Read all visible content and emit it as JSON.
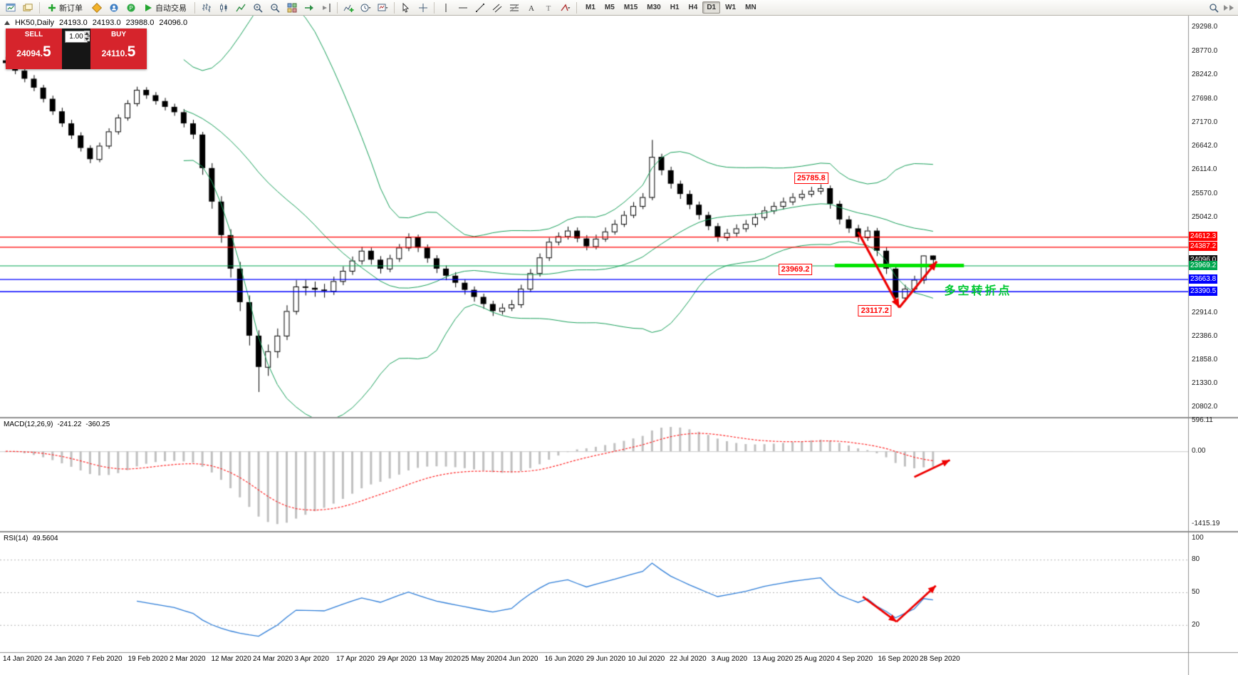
{
  "toolbar": {
    "new_order_label": "新订单",
    "autotrading_label": "自动交易",
    "timeframes": [
      "M1",
      "M5",
      "M15",
      "M30",
      "H1",
      "H4",
      "D1",
      "W1",
      "MN"
    ],
    "active_timeframe": "D1"
  },
  "quote_panel": {
    "sell_label": "SELL",
    "buy_label": "BUY",
    "volume": "1.00",
    "sell_price_main": "24094.",
    "sell_price_big": "5",
    "buy_price_main": "24110.",
    "buy_price_big": "5"
  },
  "chart_header": {
    "symbol": "HK50,Daily",
    "open": "24193.0",
    "high": "24193.0",
    "low": "23988.0",
    "close": "24096.0"
  },
  "chart_data": {
    "type": "candlestick",
    "symbol": "HK50",
    "period": "Daily",
    "price_range": [
      20580,
      29560
    ],
    "price_axis_ticks": [
      "29298.0",
      "28770.0",
      "28242.0",
      "27698.0",
      "27170.0",
      "26642.0",
      "26114.0",
      "25570.0",
      "25042.0",
      "22914.0",
      "22386.0",
      "21858.0",
      "21330.0",
      "20802.0"
    ],
    "x_labels": [
      "14 Jan 2020",
      "24 Jan 2020",
      "7 Feb 2020",
      "19 Feb 2020",
      "2 Mar 2020",
      "12 Mar 2020",
      "24 Mar 2020",
      "3 Apr 2020",
      "17 Apr 2020",
      "29 Apr 2020",
      "13 May 2020",
      "25 May 2020",
      "4 Jun 2020",
      "16 Jun 2020",
      "29 Jun 2020",
      "10 Jul 2020",
      "22 Jul 2020",
      "3 Aug 2020",
      "13 Aug 2020",
      "25 Aug 2020",
      "4 Sep 2020",
      "16 Sep 2020",
      "28 Sep 2020"
    ],
    "ohlc": [
      [
        28560,
        28640,
        28420,
        28500
      ],
      [
        28500,
        28570,
        28250,
        28330
      ],
      [
        28330,
        28400,
        28070,
        28150
      ],
      [
        28150,
        28230,
        27870,
        27950
      ],
      [
        27950,
        28010,
        27620,
        27700
      ],
      [
        27700,
        27770,
        27340,
        27420
      ],
      [
        27420,
        27500,
        27070,
        27150
      ],
      [
        27150,
        27230,
        26800,
        26880
      ],
      [
        26880,
        26950,
        26520,
        26600
      ],
      [
        26600,
        26660,
        26260,
        26350
      ],
      [
        26350,
        26720,
        26280,
        26650
      ],
      [
        26650,
        27040,
        26580,
        26970
      ],
      [
        26970,
        27350,
        26900,
        27280
      ],
      [
        27280,
        27670,
        27210,
        27600
      ],
      [
        27600,
        27970,
        27530,
        27900
      ],
      [
        27900,
        27960,
        27700,
        27780
      ],
      [
        27780,
        27850,
        27570,
        27650
      ],
      [
        27650,
        27720,
        27440,
        27520
      ],
      [
        27520,
        27590,
        27320,
        27400
      ],
      [
        27400,
        27470,
        27060,
        27150
      ],
      [
        27150,
        27230,
        26800,
        26900
      ],
      [
        26900,
        26960,
        26000,
        26150
      ],
      [
        26150,
        26260,
        25240,
        25400
      ],
      [
        25400,
        25520,
        24480,
        24650
      ],
      [
        24650,
        24780,
        23700,
        23900
      ],
      [
        23900,
        24050,
        22950,
        23150
      ],
      [
        23150,
        23300,
        22180,
        22400
      ],
      [
        22400,
        22520,
        21139,
        21700
      ],
      [
        21700,
        22200,
        21500,
        22050
      ],
      [
        22050,
        22560,
        21900,
        22400
      ],
      [
        22400,
        23080,
        22300,
        22950
      ],
      [
        22950,
        23640,
        22870,
        23500
      ],
      [
        23500,
        23650,
        23300,
        23470
      ],
      [
        23470,
        23610,
        23270,
        23430
      ],
      [
        23430,
        23560,
        23250,
        23400
      ],
      [
        23400,
        23720,
        23310,
        23620
      ],
      [
        23620,
        23950,
        23530,
        23850
      ],
      [
        23850,
        24170,
        23760,
        24080
      ],
      [
        24080,
        24390,
        23990,
        24300
      ],
      [
        24300,
        24370,
        23990,
        24100
      ],
      [
        24100,
        24180,
        23790,
        23900
      ],
      [
        23900,
        24210,
        23820,
        24130
      ],
      [
        24130,
        24450,
        24050,
        24370
      ],
      [
        24370,
        24690,
        24290,
        24600
      ],
      [
        24600,
        24660,
        24270,
        24370
      ],
      [
        24370,
        24440,
        24030,
        24130
      ],
      [
        24130,
        24200,
        23800,
        23900
      ],
      [
        23900,
        23970,
        23640,
        23742
      ],
      [
        23742,
        23820,
        23480,
        23583
      ],
      [
        23583,
        23660,
        23320,
        23425
      ],
      [
        23425,
        23500,
        23160,
        23267
      ],
      [
        23267,
        23340,
        23000,
        23108
      ],
      [
        23108,
        23180,
        22840,
        22950
      ],
      [
        22950,
        23120,
        22870,
        23025
      ],
      [
        23025,
        23200,
        22950,
        23100
      ],
      [
        23100,
        23540,
        23020,
        23450
      ],
      [
        23450,
        23890,
        23370,
        23800
      ],
      [
        23800,
        24240,
        23720,
        24150
      ],
      [
        24150,
        24590,
        24070,
        24500
      ],
      [
        24500,
        24710,
        24420,
        24625
      ],
      [
        24625,
        24840,
        24550,
        24750
      ],
      [
        24750,
        24820,
        24490,
        24575
      ],
      [
        24575,
        24650,
        24310,
        24400
      ],
      [
        24400,
        24660,
        24330,
        24570
      ],
      [
        24570,
        24820,
        24500,
        24730
      ],
      [
        24730,
        24990,
        24660,
        24900
      ],
      [
        24900,
        25190,
        24830,
        25100
      ],
      [
        25100,
        25390,
        25030,
        25300
      ],
      [
        25300,
        25590,
        25230,
        25500
      ],
      [
        25500,
        26780,
        25430,
        26400
      ],
      [
        26400,
        26470,
        25990,
        26100
      ],
      [
        26100,
        26180,
        25690,
        25800
      ],
      [
        25800,
        25870,
        25460,
        25570
      ],
      [
        25570,
        25650,
        25230,
        25330
      ],
      [
        25330,
        25400,
        25000,
        25100
      ],
      [
        25100,
        25170,
        24760,
        24850
      ],
      [
        24850,
        24920,
        24500,
        24600
      ],
      [
        24600,
        24790,
        24520,
        24700
      ],
      [
        24700,
        24890,
        24620,
        24800
      ],
      [
        24800,
        24990,
        24720,
        24900
      ],
      [
        24900,
        25140,
        24830,
        25050
      ],
      [
        25050,
        25290,
        24980,
        25200
      ],
      [
        25200,
        25390,
        25120,
        25300
      ],
      [
        25300,
        25490,
        25220,
        25400
      ],
      [
        25400,
        25590,
        25320,
        25500
      ],
      [
        25500,
        25660,
        25430,
        25570
      ],
      [
        25570,
        25730,
        25500,
        25640
      ],
      [
        25640,
        25786,
        25560,
        25700
      ],
      [
        25700,
        25760,
        25240,
        25350
      ],
      [
        25350,
        25420,
        24890,
        25000
      ],
      [
        25000,
        25080,
        24700,
        24800
      ],
      [
        24800,
        24880,
        24500,
        24600
      ],
      [
        24600,
        24840,
        24520,
        24750
      ],
      [
        24750,
        24810,
        24180,
        24300
      ],
      [
        24300,
        24380,
        23780,
        23900
      ],
      [
        23900,
        23980,
        23117,
        23250
      ],
      [
        23250,
        23540,
        23160,
        23450
      ],
      [
        23450,
        23740,
        23360,
        23650
      ],
      [
        23650,
        24200,
        23560,
        24193
      ],
      [
        24193,
        24193,
        23988,
        24096
      ]
    ],
    "indicators": {
      "bollinger": {
        "period": 20,
        "deviation": 2,
        "color": "#18a05a"
      },
      "macd": {
        "label": "MACD(12,26,9)",
        "value": "-241.22",
        "signal_value": "-360.25",
        "axis_ticks": [
          "596.11",
          "0.00",
          "-1415.19"
        ],
        "histogram_color": "#c0c0c0",
        "signal_color": "#ff2a2a"
      },
      "rsi": {
        "label": "RSI(14)",
        "value": "49.5604",
        "axis_ticks": [
          "100",
          "80",
          "50",
          "20"
        ],
        "levels": [
          80,
          50,
          20
        ],
        "line_color": "#2f7ed8"
      }
    },
    "hlines": [
      {
        "price": 24612.3,
        "color": "#ff0000"
      },
      {
        "price": 24387.2,
        "color": "#ff0000"
      },
      {
        "price": 23969.2,
        "color": "#00a650"
      },
      {
        "price": 23663.8,
        "color": "#0000ff"
      },
      {
        "price": 23390.5,
        "color": "#0000ff"
      }
    ],
    "scale_labels": [
      {
        "text": "24612.3",
        "price": 24612.3,
        "bg": "#ff0000"
      },
      {
        "text": "24387.2",
        "price": 24387.2,
        "bg": "#ff0000"
      },
      {
        "text": "24096.0",
        "price": 24096.0,
        "bg": "#141414"
      },
      {
        "text": "23969.2",
        "price": 23969.2,
        "bg": "#00a650"
      },
      {
        "text": "23663.8",
        "price": 23663.8,
        "bg": "#0000ff"
      },
      {
        "text": "23390.5",
        "price": 23390.5,
        "bg": "#0000ff"
      }
    ],
    "highlight": {
      "price": 23969.2,
      "from_bar": 88.5,
      "to_bar": 102.3,
      "color": "#00e400"
    },
    "annotations": {
      "boxes": [
        {
          "text": "25785.8",
          "bar": 86.0,
          "price": 25920
        },
        {
          "text": "23969.2",
          "bar": 84.3,
          "price": 23880
        },
        {
          "text": "23117.2",
          "bar": 92.8,
          "price": 22950
        }
      ],
      "note": {
        "text": "多空转折点",
        "bar": 103.8,
        "price": 23430,
        "color": "#00c832"
      },
      "arrow_color": "#ee0000",
      "arrows_main": [
        {
          "from": [
            91.0,
            24720
          ],
          "to": [
            95.4,
            23030
          ]
        },
        {
          "from": [
            95.4,
            23030
          ],
          "to": [
            99.4,
            24060
          ]
        }
      ],
      "arrows_macd": [
        {
          "from": [
            97.0,
            -500
          ],
          "to": [
            100.8,
            -170
          ]
        }
      ],
      "arrows_rsi": [
        {
          "from": [
            91.5,
            46
          ],
          "to": [
            95.1,
            23
          ]
        },
        {
          "from": [
            95.1,
            23
          ],
          "to": [
            99.3,
            56
          ]
        }
      ]
    }
  }
}
